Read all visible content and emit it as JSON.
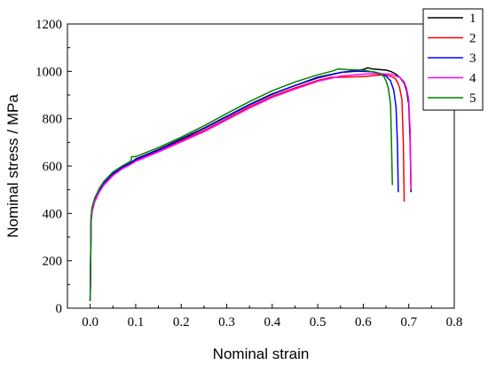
{
  "chart_data": {
    "type": "line",
    "xlabel": "Nominal strain",
    "ylabel": "Nominal stress / MPa",
    "xlim": [
      -0.05,
      0.8
    ],
    "ylim": [
      0,
      1200
    ],
    "xticks": [
      "0.0",
      "0.1",
      "0.2",
      "0.3",
      "0.4",
      "0.5",
      "0.6",
      "0.7",
      "0.8"
    ],
    "yticks": [
      "0",
      "200",
      "400",
      "600",
      "800",
      "1000",
      "1200"
    ],
    "grid": false,
    "legend_position": "top-right",
    "series": [
      {
        "name": "1",
        "color": "#000000",
        "points": [
          [
            0.0,
            30
          ],
          [
            0.001,
            200
          ],
          [
            0.002,
            380
          ],
          [
            0.004,
            420
          ],
          [
            0.01,
            460
          ],
          [
            0.02,
            500
          ],
          [
            0.03,
            530
          ],
          [
            0.05,
            570
          ],
          [
            0.07,
            595
          ],
          [
            0.09,
            615
          ],
          [
            0.1,
            630
          ],
          [
            0.15,
            670
          ],
          [
            0.2,
            715
          ],
          [
            0.25,
            760
          ],
          [
            0.3,
            810
          ],
          [
            0.35,
            860
          ],
          [
            0.4,
            905
          ],
          [
            0.45,
            940
          ],
          [
            0.5,
            975
          ],
          [
            0.55,
            995
          ],
          [
            0.6,
            1008
          ],
          [
            0.61,
            1015
          ],
          [
            0.62,
            1010
          ],
          [
            0.65,
            1005
          ],
          [
            0.66,
            1000
          ],
          [
            0.67,
            990
          ],
          [
            0.68,
            975
          ],
          [
            0.69,
            950
          ],
          [
            0.695,
            920
          ],
          [
            0.7,
            860
          ],
          [
            0.703,
            700
          ],
          [
            0.705,
            490
          ]
        ]
      },
      {
        "name": "2",
        "color": "#ff0000",
        "points": [
          [
            0.0,
            30
          ],
          [
            0.001,
            200
          ],
          [
            0.002,
            370
          ],
          [
            0.004,
            410
          ],
          [
            0.01,
            455
          ],
          [
            0.02,
            495
          ],
          [
            0.03,
            525
          ],
          [
            0.05,
            565
          ],
          [
            0.07,
            592
          ],
          [
            0.09,
            612
          ],
          [
            0.1,
            625
          ],
          [
            0.15,
            665
          ],
          [
            0.2,
            708
          ],
          [
            0.25,
            750
          ],
          [
            0.3,
            800
          ],
          [
            0.35,
            850
          ],
          [
            0.4,
            895
          ],
          [
            0.45,
            930
          ],
          [
            0.5,
            962
          ],
          [
            0.53,
            975
          ],
          [
            0.55,
            975
          ],
          [
            0.6,
            978
          ],
          [
            0.64,
            985
          ],
          [
            0.66,
            980
          ],
          [
            0.67,
            970
          ],
          [
            0.675,
            955
          ],
          [
            0.68,
            930
          ],
          [
            0.685,
            880
          ],
          [
            0.688,
            700
          ],
          [
            0.69,
            450
          ]
        ]
      },
      {
        "name": "3",
        "color": "#0000ff",
        "points": [
          [
            0.0,
            30
          ],
          [
            0.001,
            200
          ],
          [
            0.002,
            375
          ],
          [
            0.004,
            415
          ],
          [
            0.01,
            458
          ],
          [
            0.02,
            498
          ],
          [
            0.03,
            528
          ],
          [
            0.05,
            568
          ],
          [
            0.07,
            594
          ],
          [
            0.09,
            613
          ],
          [
            0.1,
            628
          ],
          [
            0.15,
            668
          ],
          [
            0.2,
            712
          ],
          [
            0.25,
            758
          ],
          [
            0.3,
            808
          ],
          [
            0.35,
            858
          ],
          [
            0.4,
            903
          ],
          [
            0.45,
            940
          ],
          [
            0.5,
            972
          ],
          [
            0.55,
            995
          ],
          [
            0.58,
            1000
          ],
          [
            0.6,
            1000
          ],
          [
            0.62,
            998
          ],
          [
            0.64,
            990
          ],
          [
            0.65,
            980
          ],
          [
            0.66,
            960
          ],
          [
            0.667,
            920
          ],
          [
            0.672,
            850
          ],
          [
            0.675,
            700
          ],
          [
            0.677,
            490
          ]
        ]
      },
      {
        "name": "4",
        "color": "#ff00ff",
        "points": [
          [
            0.0,
            30
          ],
          [
            0.001,
            200
          ],
          [
            0.002,
            365
          ],
          [
            0.004,
            405
          ],
          [
            0.01,
            450
          ],
          [
            0.02,
            490
          ],
          [
            0.03,
            520
          ],
          [
            0.05,
            560
          ],
          [
            0.07,
            588
          ],
          [
            0.09,
            608
          ],
          [
            0.1,
            620
          ],
          [
            0.15,
            660
          ],
          [
            0.2,
            702
          ],
          [
            0.25,
            745
          ],
          [
            0.3,
            795
          ],
          [
            0.35,
            845
          ],
          [
            0.4,
            890
          ],
          [
            0.45,
            925
          ],
          [
            0.5,
            958
          ],
          [
            0.55,
            980
          ],
          [
            0.6,
            988
          ],
          [
            0.63,
            990
          ],
          [
            0.66,
            988
          ],
          [
            0.68,
            975
          ],
          [
            0.69,
            955
          ],
          [
            0.695,
            930
          ],
          [
            0.7,
            880
          ],
          [
            0.703,
            750
          ],
          [
            0.705,
            500
          ]
        ]
      },
      {
        "name": "5",
        "color": "#008000",
        "points": [
          [
            0.0,
            30
          ],
          [
            0.001,
            200
          ],
          [
            0.002,
            385
          ],
          [
            0.004,
            425
          ],
          [
            0.01,
            465
          ],
          [
            0.02,
            505
          ],
          [
            0.03,
            535
          ],
          [
            0.05,
            575
          ],
          [
            0.07,
            600
          ],
          [
            0.09,
            622
          ],
          [
            0.091,
            640
          ],
          [
            0.1,
            640
          ],
          [
            0.15,
            678
          ],
          [
            0.2,
            722
          ],
          [
            0.25,
            770
          ],
          [
            0.3,
            822
          ],
          [
            0.35,
            872
          ],
          [
            0.4,
            918
          ],
          [
            0.45,
            955
          ],
          [
            0.5,
            985
          ],
          [
            0.53,
            1000
          ],
          [
            0.545,
            1010
          ],
          [
            0.56,
            1008
          ],
          [
            0.6,
            1005
          ],
          [
            0.63,
            995
          ],
          [
            0.645,
            980
          ],
          [
            0.65,
            960
          ],
          [
            0.655,
            930
          ],
          [
            0.66,
            860
          ],
          [
            0.662,
            700
          ],
          [
            0.664,
            520
          ]
        ]
      }
    ]
  }
}
